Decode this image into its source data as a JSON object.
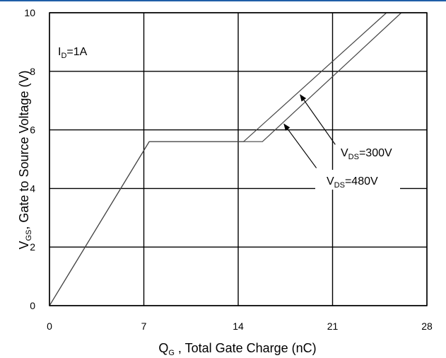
{
  "chart_data": {
    "type": "line",
    "title": "",
    "xlabel": {
      "main": "Q",
      "sub": "G",
      "rest": " , Total Gate Charge (nC)"
    },
    "ylabel": {
      "main": "V",
      "sub": "GS",
      "rest": ", Gate to Source Voltage (V)"
    },
    "xlim": [
      0,
      28
    ],
    "ylim": [
      0,
      10
    ],
    "xticks": [
      0,
      7,
      14,
      21,
      28
    ],
    "yticks": [
      0,
      2,
      4,
      6,
      8,
      10
    ],
    "grid": true,
    "annotation_id": {
      "main": "I",
      "sub": "D",
      "rest": "=1A"
    },
    "series": [
      {
        "name": "VDS=300V",
        "label": {
          "main": "V",
          "sub": "DS",
          "rest": "=300V"
        },
        "points": [
          [
            0,
            0
          ],
          [
            7.4,
            5.6
          ],
          [
            14.4,
            5.6
          ],
          [
            25.0,
            10.0
          ]
        ]
      },
      {
        "name": "VDS=480V",
        "label": {
          "main": "V",
          "sub": "DS",
          "rest": "=480V"
        },
        "points": [
          [
            0,
            0
          ],
          [
            7.4,
            5.6
          ],
          [
            15.8,
            5.6
          ],
          [
            26.1,
            10.0
          ]
        ]
      }
    ],
    "arrows": [
      {
        "series": 0,
        "from": [
          21.2,
          5.5
        ],
        "to": [
          18.6,
          7.2
        ]
      },
      {
        "series": 1,
        "from": [
          19.8,
          4.7
        ],
        "to": [
          17.4,
          6.2
        ]
      }
    ]
  }
}
